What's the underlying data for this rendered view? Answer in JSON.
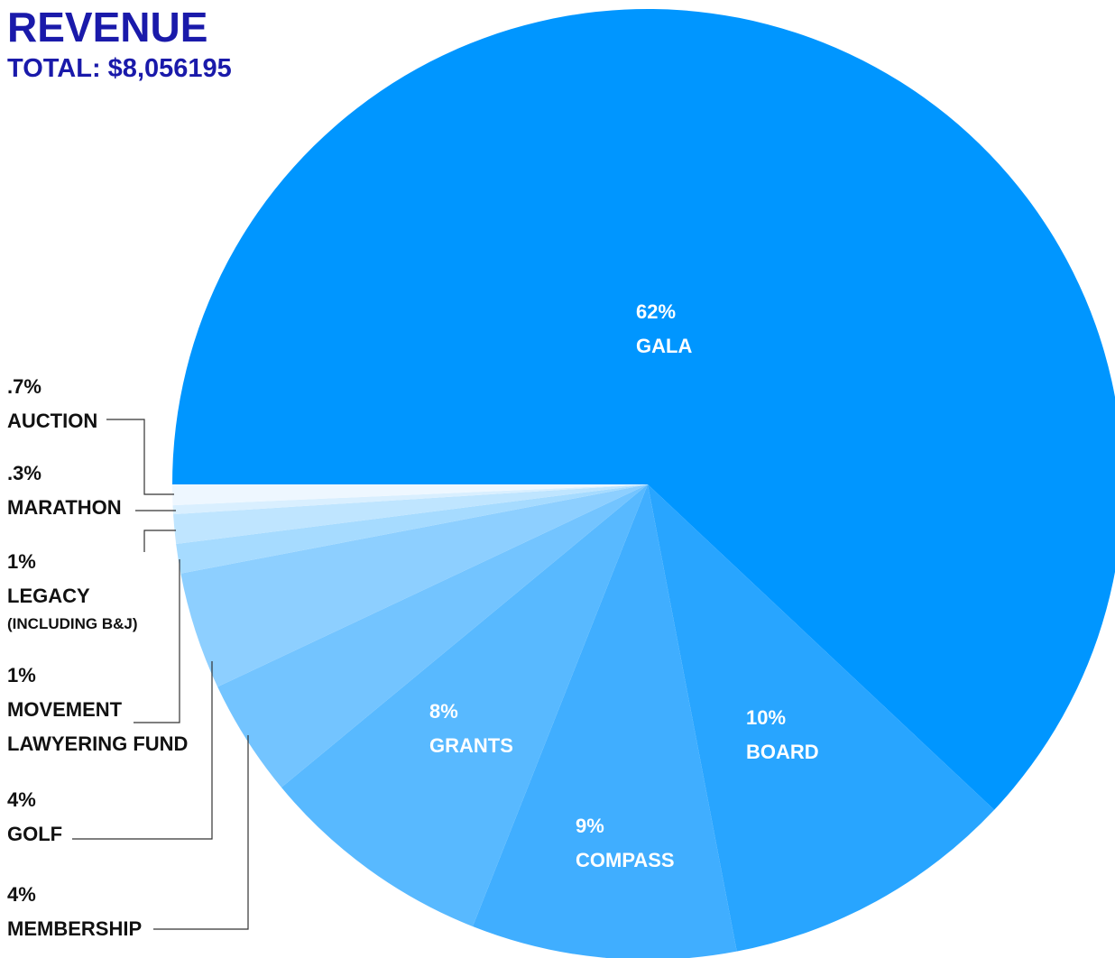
{
  "chart_data": {
    "type": "pie",
    "title": "REVENUE",
    "subtitle": "TOTAL: $8,056195",
    "categories": [
      "GALA",
      "BOARD",
      "COMPASS",
      "GRANTS",
      "MEMBERSHIP",
      "GOLF",
      "MOVEMENT LAWYERING FUND",
      "LEGACY",
      "MARATHON",
      "AUCTION"
    ],
    "values": [
      62,
      10,
      9,
      8,
      4,
      4,
      1,
      1,
      0.3,
      0.7
    ],
    "value_labels": [
      "62%",
      "10%",
      "9%",
      "8%",
      "4%",
      "4%",
      "1%",
      "1%",
      ".3%",
      ".7%"
    ],
    "note": "(INCLUDING B&J)",
    "colors": [
      "#0096ff",
      "#28a5ff",
      "#40aeff",
      "#58b9ff",
      "#73c4ff",
      "#8dcfff",
      "#a6dbff",
      "#bfe5ff",
      "#d9efff",
      "#eef7ff"
    ]
  }
}
